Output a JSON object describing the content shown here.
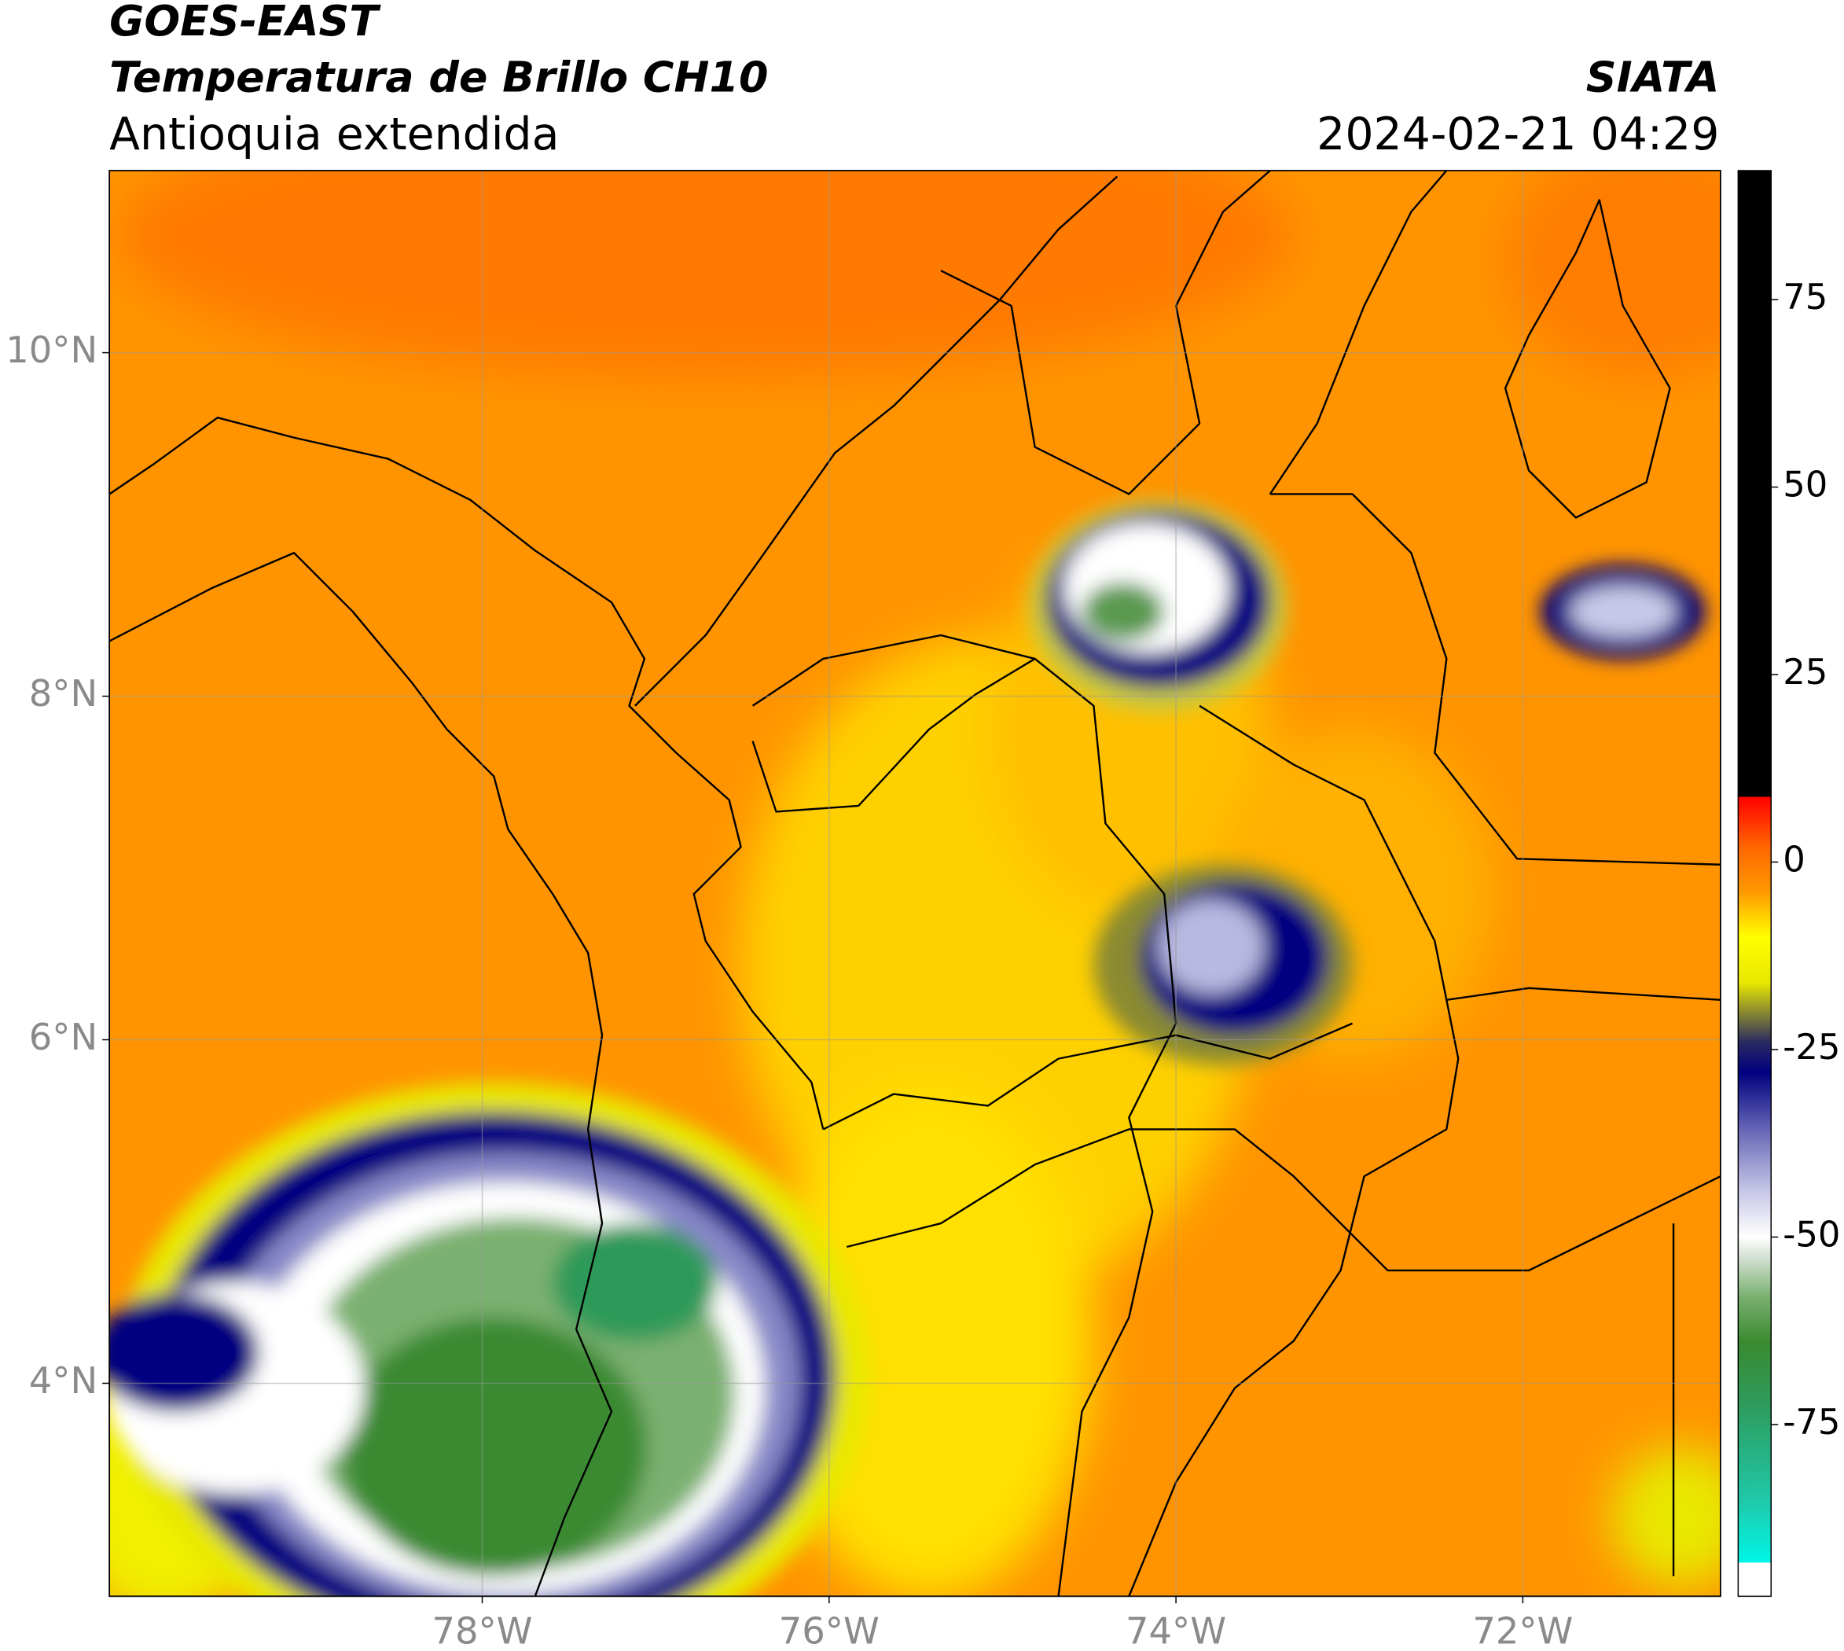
{
  "header": {
    "title": "GOES-EAST",
    "subtitle": "Temperatura de Brillo CH10",
    "region": "Antioquia extendida",
    "source": "SIATA",
    "timestamp": "2024-02-21 04:29"
  },
  "map": {
    "xlim": [
      -80.15,
      -70.86
    ],
    "ylim": [
      2.76,
      11.06
    ],
    "xticks": [
      {
        "value": -78,
        "label": "78°W"
      },
      {
        "value": -76,
        "label": "76°W"
      },
      {
        "value": -74,
        "label": "74°W"
      },
      {
        "value": -72,
        "label": "72°W"
      }
    ],
    "yticks": [
      {
        "value": 4,
        "label": "4°N"
      },
      {
        "value": 6,
        "label": "6°N"
      },
      {
        "value": 8,
        "label": "8°N"
      },
      {
        "value": 10,
        "label": "10°N"
      }
    ],
    "grid": true
  },
  "colorbar": {
    "lim": [
      -97.9,
      92.2
    ],
    "ticks": [
      -75,
      -50,
      -25,
      0,
      25,
      50,
      75
    ],
    "stops": [
      {
        "value": -97.9,
        "color": "#ffffff"
      },
      {
        "value": -93.4,
        "color": "#ffffff"
      },
      {
        "value": -93.4,
        "color": "#00f5e8"
      },
      {
        "value": -85,
        "color": "#20c8a8"
      },
      {
        "value": -72,
        "color": "#2e9a5a"
      },
      {
        "value": -64,
        "color": "#3a8a30"
      },
      {
        "value": -58,
        "color": "#7ab070"
      },
      {
        "value": -52,
        "color": "#dfe8df"
      },
      {
        "value": -50,
        "color": "#ffffff"
      },
      {
        "value": -44,
        "color": "#c8c8e8"
      },
      {
        "value": -36,
        "color": "#6a6ab8"
      },
      {
        "value": -28,
        "color": "#000080"
      },
      {
        "value": -24,
        "color": "#2a2a60"
      },
      {
        "value": -20,
        "color": "#8a8a30"
      },
      {
        "value": -16,
        "color": "#e8e800"
      },
      {
        "value": -10,
        "color": "#ffff00"
      },
      {
        "value": -4,
        "color": "#ff9900"
      },
      {
        "value": 2,
        "color": "#ff6600"
      },
      {
        "value": 8.7,
        "color": "#ff0000"
      },
      {
        "value": 8.7,
        "color": "#000000"
      },
      {
        "value": 92.2,
        "color": "#000000"
      }
    ]
  }
}
